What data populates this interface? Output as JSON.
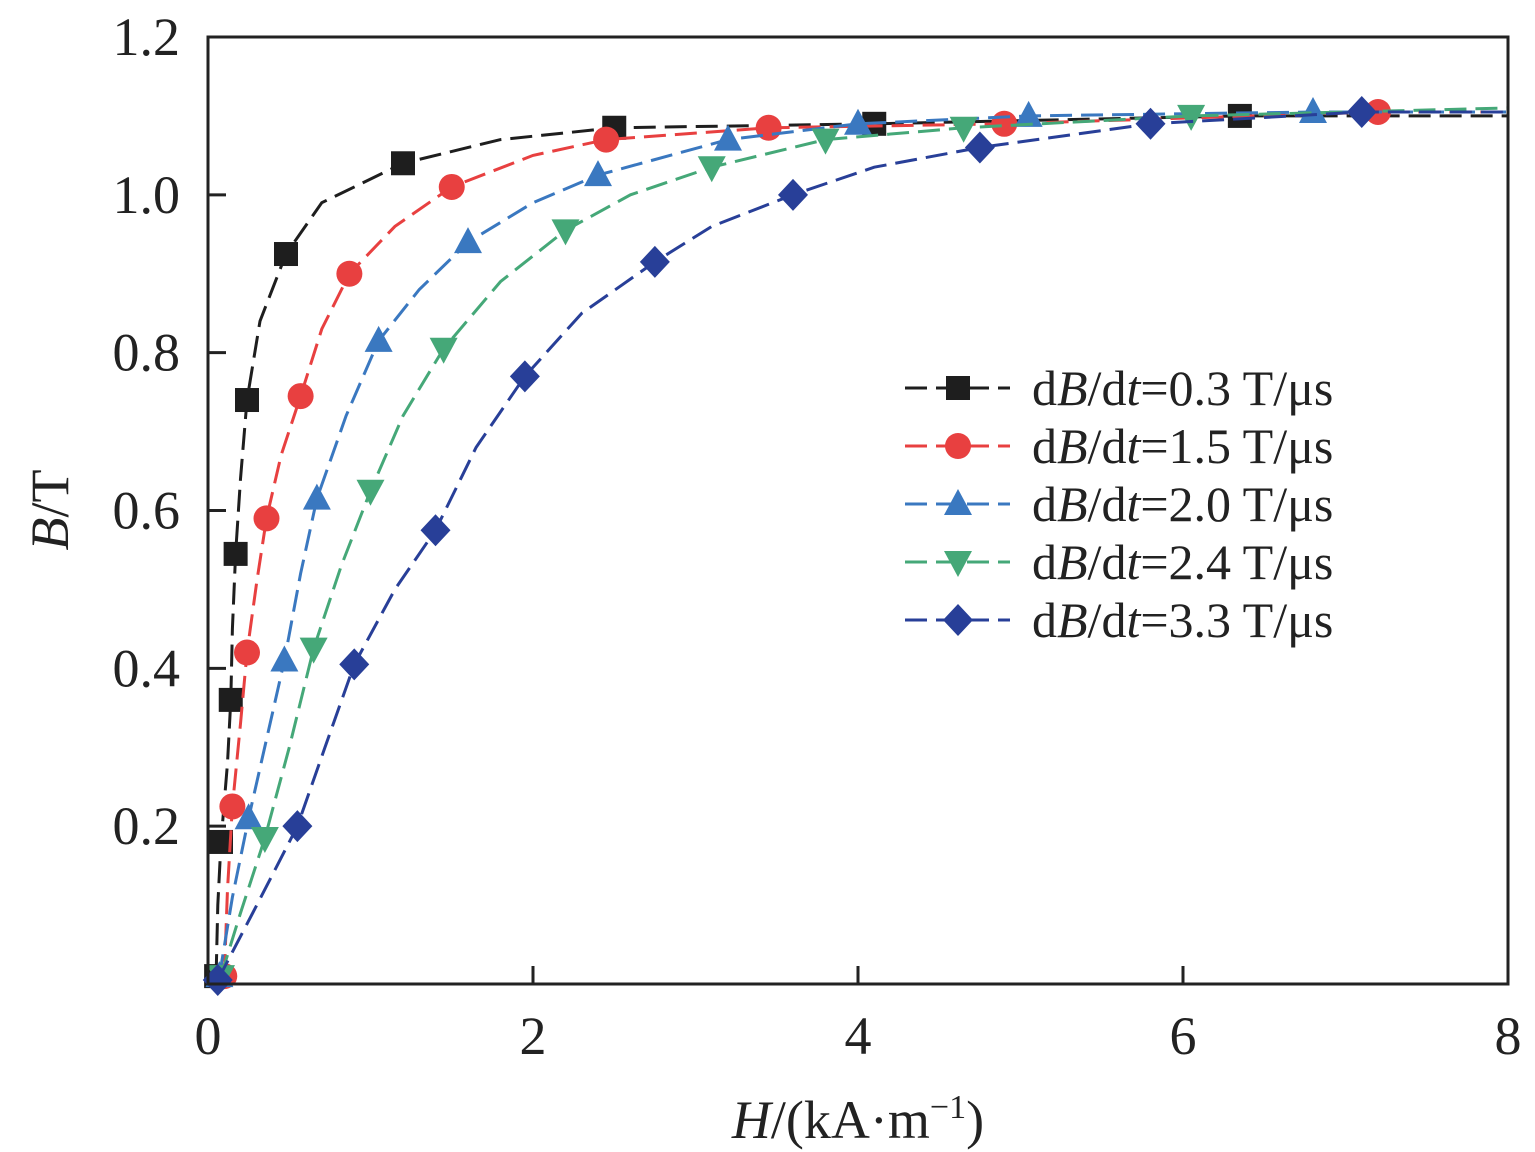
{
  "chart_data": {
    "type": "line",
    "xlabel": {
      "symbol": "H",
      "rest": "/(kA·m",
      "sup": "−1",
      "close": ")"
    },
    "ylabel": {
      "symbol": "B",
      "rest": "/T"
    },
    "xlim": [
      0,
      8
    ],
    "ylim": [
      0,
      1.2
    ],
    "x_ticks": [
      0,
      2,
      4,
      6,
      8
    ],
    "x_tick_labels": [
      "0",
      "2",
      "4",
      "6",
      "8"
    ],
    "y_ticks": [
      0.2,
      0.4,
      0.6,
      0.8,
      1.0,
      1.2
    ],
    "y_tick_labels": [
      "0.2",
      "0.4",
      "0.6",
      "0.8",
      "1.0",
      "1.2"
    ],
    "grid": false,
    "legend_position": "right-middle",
    "series": [
      {
        "name": "dB/dt=0.3 T/μs",
        "legend": {
          "a": "d",
          "b": "B",
          "c": "/d",
          "d": "t",
          "e": "=0.3 T/μs"
        },
        "color": "#1e1e1e",
        "marker": "square",
        "points": [
          [
            0.05,
            0.01
          ],
          [
            0.08,
            0.18
          ],
          [
            0.14,
            0.36
          ],
          [
            0.17,
            0.545
          ],
          [
            0.24,
            0.74
          ],
          [
            0.48,
            0.925
          ],
          [
            1.2,
            1.04
          ],
          [
            2.5,
            1.085
          ],
          [
            4.1,
            1.09
          ],
          [
            6.35,
            1.1
          ]
        ],
        "line": [
          [
            0.05,
            0.01
          ],
          [
            0.06,
            0.1
          ],
          [
            0.08,
            0.18
          ],
          [
            0.12,
            0.28
          ],
          [
            0.14,
            0.36
          ],
          [
            0.15,
            0.45
          ],
          [
            0.17,
            0.545
          ],
          [
            0.2,
            0.64
          ],
          [
            0.24,
            0.74
          ],
          [
            0.32,
            0.84
          ],
          [
            0.48,
            0.925
          ],
          [
            0.7,
            0.99
          ],
          [
            1.2,
            1.04
          ],
          [
            1.8,
            1.07
          ],
          [
            2.5,
            1.085
          ],
          [
            4.1,
            1.09
          ],
          [
            6.35,
            1.1
          ],
          [
            8.0,
            1.1
          ]
        ]
      },
      {
        "name": "dB/dt=1.5 T/μs",
        "legend": {
          "a": "d",
          "b": "B",
          "c": "/d",
          "d": "t",
          "e": "=1.5 T/μs"
        },
        "color": "#e84040",
        "marker": "circle",
        "points": [
          [
            0.1,
            0.01
          ],
          [
            0.15,
            0.225
          ],
          [
            0.24,
            0.42
          ],
          [
            0.36,
            0.59
          ],
          [
            0.57,
            0.745
          ],
          [
            0.87,
            0.9
          ],
          [
            1.5,
            1.01
          ],
          [
            2.45,
            1.07
          ],
          [
            3.45,
            1.085
          ],
          [
            4.9,
            1.09
          ],
          [
            7.2,
            1.105
          ]
        ],
        "line": [
          [
            0.1,
            0.01
          ],
          [
            0.12,
            0.12
          ],
          [
            0.15,
            0.225
          ],
          [
            0.2,
            0.33
          ],
          [
            0.24,
            0.42
          ],
          [
            0.3,
            0.51
          ],
          [
            0.36,
            0.59
          ],
          [
            0.45,
            0.67
          ],
          [
            0.57,
            0.745
          ],
          [
            0.7,
            0.83
          ],
          [
            0.87,
            0.9
          ],
          [
            1.15,
            0.96
          ],
          [
            1.5,
            1.01
          ],
          [
            2.0,
            1.05
          ],
          [
            2.45,
            1.07
          ],
          [
            3.45,
            1.085
          ],
          [
            4.9,
            1.09
          ],
          [
            7.2,
            1.105
          ],
          [
            8.0,
            1.105
          ]
        ]
      },
      {
        "name": "dB/dt=2.0 T/μs",
        "legend": {
          "a": "d",
          "b": "B",
          "c": "/d",
          "d": "t",
          "e": "=2.0 T/μs"
        },
        "color": "#3a78c0",
        "marker": "triangle-up",
        "points": [
          [
            0.07,
            0.01
          ],
          [
            0.25,
            0.21
          ],
          [
            0.47,
            0.41
          ],
          [
            0.67,
            0.615
          ],
          [
            1.05,
            0.815
          ],
          [
            1.6,
            0.94
          ],
          [
            2.4,
            1.025
          ],
          [
            3.2,
            1.07
          ],
          [
            4.0,
            1.09
          ],
          [
            5.05,
            1.1
          ],
          [
            6.8,
            1.105
          ]
        ],
        "line": [
          [
            0.07,
            0.01
          ],
          [
            0.15,
            0.11
          ],
          [
            0.25,
            0.21
          ],
          [
            0.36,
            0.31
          ],
          [
            0.47,
            0.41
          ],
          [
            0.57,
            0.52
          ],
          [
            0.67,
            0.615
          ],
          [
            0.85,
            0.72
          ],
          [
            1.05,
            0.815
          ],
          [
            1.3,
            0.88
          ],
          [
            1.6,
            0.94
          ],
          [
            2.0,
            0.99
          ],
          [
            2.4,
            1.025
          ],
          [
            3.2,
            1.07
          ],
          [
            4.0,
            1.09
          ],
          [
            5.05,
            1.1
          ],
          [
            6.8,
            1.105
          ],
          [
            8.0,
            1.105
          ]
        ]
      },
      {
        "name": "dB/dt=2.4 T/μs",
        "legend": {
          "a": "d",
          "b": "B",
          "c": "/d",
          "d": "t",
          "e": "=2.4 T/μs"
        },
        "color": "#45a878",
        "marker": "triangle-down",
        "points": [
          [
            0.08,
            0.01
          ],
          [
            0.35,
            0.185
          ],
          [
            0.65,
            0.425
          ],
          [
            1.0,
            0.625
          ],
          [
            1.45,
            0.805
          ],
          [
            2.2,
            0.955
          ],
          [
            3.1,
            1.035
          ],
          [
            3.8,
            1.07
          ],
          [
            4.65,
            1.085
          ],
          [
            6.05,
            1.1
          ]
        ],
        "line": [
          [
            0.08,
            0.01
          ],
          [
            0.2,
            0.09
          ],
          [
            0.35,
            0.185
          ],
          [
            0.5,
            0.3
          ],
          [
            0.65,
            0.425
          ],
          [
            0.82,
            0.53
          ],
          [
            1.0,
            0.625
          ],
          [
            1.2,
            0.72
          ],
          [
            1.45,
            0.805
          ],
          [
            1.8,
            0.89
          ],
          [
            2.2,
            0.955
          ],
          [
            2.6,
            1.0
          ],
          [
            3.1,
            1.035
          ],
          [
            3.8,
            1.07
          ],
          [
            4.65,
            1.085
          ],
          [
            6.05,
            1.1
          ],
          [
            8.0,
            1.11
          ]
        ]
      },
      {
        "name": "dB/dt=3.3 T/μs",
        "legend": {
          "a": "d",
          "b": "B",
          "c": "/d",
          "d": "t",
          "e": "=3.3 T/μs"
        },
        "color": "#283f98",
        "marker": "diamond",
        "points": [
          [
            0.06,
            0.005
          ],
          [
            0.55,
            0.2
          ],
          [
            0.9,
            0.405
          ],
          [
            1.4,
            0.575
          ],
          [
            1.95,
            0.77
          ],
          [
            2.75,
            0.915
          ],
          [
            3.6,
            1.0
          ],
          [
            4.75,
            1.06
          ],
          [
            5.8,
            1.09
          ],
          [
            7.1,
            1.105
          ]
        ],
        "line": [
          [
            0.06,
            0.005
          ],
          [
            0.3,
            0.1
          ],
          [
            0.55,
            0.2
          ],
          [
            0.72,
            0.3
          ],
          [
            0.9,
            0.405
          ],
          [
            1.15,
            0.5
          ],
          [
            1.4,
            0.575
          ],
          [
            1.65,
            0.68
          ],
          [
            1.95,
            0.77
          ],
          [
            2.3,
            0.85
          ],
          [
            2.75,
            0.915
          ],
          [
            3.1,
            0.96
          ],
          [
            3.6,
            1.0
          ],
          [
            4.1,
            1.035
          ],
          [
            4.75,
            1.06
          ],
          [
            5.8,
            1.09
          ],
          [
            7.1,
            1.105
          ],
          [
            8.0,
            1.105
          ]
        ]
      }
    ]
  }
}
